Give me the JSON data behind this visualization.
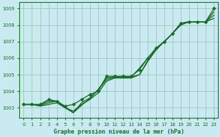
{
  "title": "Graphe pression niveau de la mer (hPa)",
  "bg_color": "#c8eaf0",
  "grid_color": "#a0ccbb",
  "line_color": "#1a6b2a",
  "spine_color": "#1a6b2a",
  "xlim": [
    -0.5,
    23.5
  ],
  "ylim": [
    1002.4,
    1009.4
  ],
  "yticks": [
    1003,
    1004,
    1005,
    1006,
    1007,
    1008,
    1009
  ],
  "xticks": [
    0,
    1,
    2,
    3,
    4,
    5,
    6,
    7,
    8,
    9,
    10,
    11,
    12,
    13,
    14,
    15,
    16,
    17,
    18,
    19,
    20,
    21,
    22,
    23
  ],
  "series": [
    {
      "y": [
        1003.2,
        1003.2,
        1003.2,
        1003.5,
        1003.4,
        1003.1,
        1003.2,
        1003.5,
        1003.8,
        1004.0,
        1004.9,
        1004.9,
        1004.9,
        1004.9,
        1005.3,
        1006.0,
        1006.6,
        1007.0,
        1007.5,
        1008.1,
        1008.2,
        1008.2,
        1008.2,
        1009.0
      ],
      "marker": "D",
      "markersize": 2.5,
      "lw": 1.0
    },
    {
      "y": [
        1003.2,
        1003.2,
        1003.1,
        1003.2,
        1003.3,
        1003.0,
        1002.8,
        1003.2,
        1003.5,
        1003.9,
        1004.6,
        1004.8,
        1004.8,
        1004.8,
        1005.0,
        1005.8,
        1006.5,
        1007.0,
        1007.5,
        1008.1,
        1008.2,
        1008.2,
        1008.2,
        1008.8
      ],
      "marker": null,
      "markersize": 0,
      "lw": 1.0
    },
    {
      "y": [
        1003.2,
        1003.2,
        1003.15,
        1003.3,
        1003.4,
        1003.05,
        1002.7,
        1003.15,
        1003.55,
        1004.1,
        1004.7,
        1004.85,
        1004.85,
        1004.85,
        1005.0,
        1005.85,
        1006.55,
        1007.0,
        1007.5,
        1008.0,
        1008.2,
        1008.2,
        1008.2,
        1008.6
      ],
      "marker": null,
      "markersize": 0,
      "lw": 1.0
    },
    {
      "y": [
        1003.2,
        1003.2,
        1003.2,
        1003.4,
        1003.4,
        1003.0,
        1002.7,
        1003.3,
        1003.6,
        1004.1,
        1004.8,
        1004.85,
        1004.85,
        1004.85,
        1005.4,
        1006.0,
        1006.6,
        1007.0,
        1007.5,
        1008.1,
        1008.2,
        1008.2,
        1008.2,
        1008.4
      ],
      "marker": null,
      "markersize": 0,
      "lw": 1.0
    }
  ],
  "tick_labelsize": 5,
  "xlabel_fontsize": 6
}
